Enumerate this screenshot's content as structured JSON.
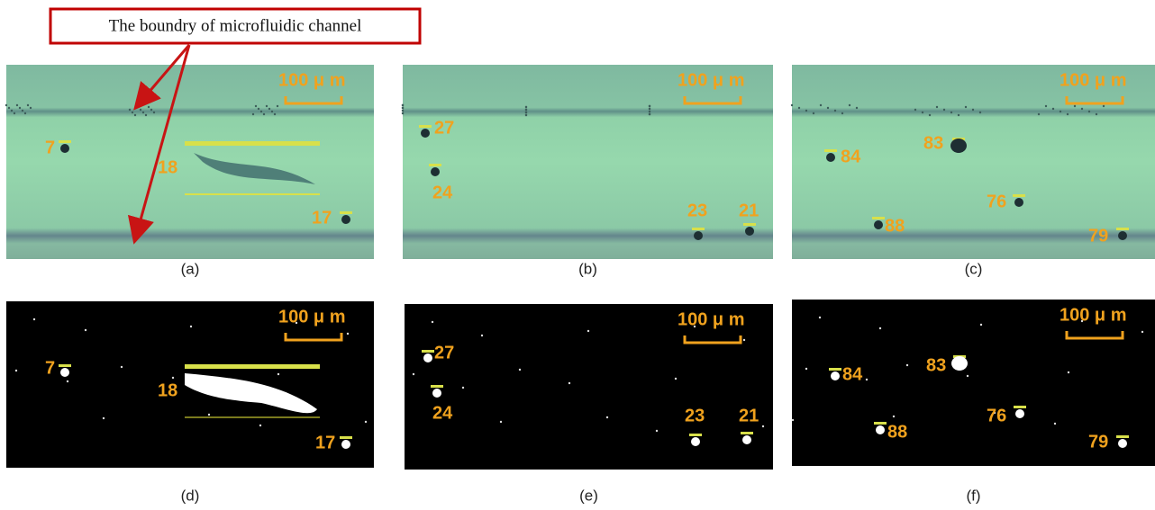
{
  "annotation": "The boundry of microfluidic channel",
  "panels": [
    {
      "caption": "(a)",
      "scale_bar": "100 μ m",
      "labels": [
        "7",
        "18",
        "17"
      ]
    },
    {
      "caption": "(b)",
      "scale_bar": "100 μ m",
      "labels": [
        "27",
        "24",
        "23",
        "21"
      ]
    },
    {
      "caption": "(c)",
      "scale_bar": "100 μ m",
      "labels": [
        "84",
        "83",
        "88",
        "76",
        "79"
      ]
    },
    {
      "caption": "(d)",
      "scale_bar": "100 μ m",
      "labels": [
        "7",
        "18",
        "17"
      ]
    },
    {
      "caption": "(e)",
      "scale_bar": "100 μ m",
      "labels": [
        "27",
        "24",
        "23",
        "21"
      ]
    },
    {
      "caption": "(f)",
      "scale_bar": "100 μ m",
      "labels": [
        "84",
        "83",
        "88",
        "76",
        "79"
      ]
    }
  ]
}
